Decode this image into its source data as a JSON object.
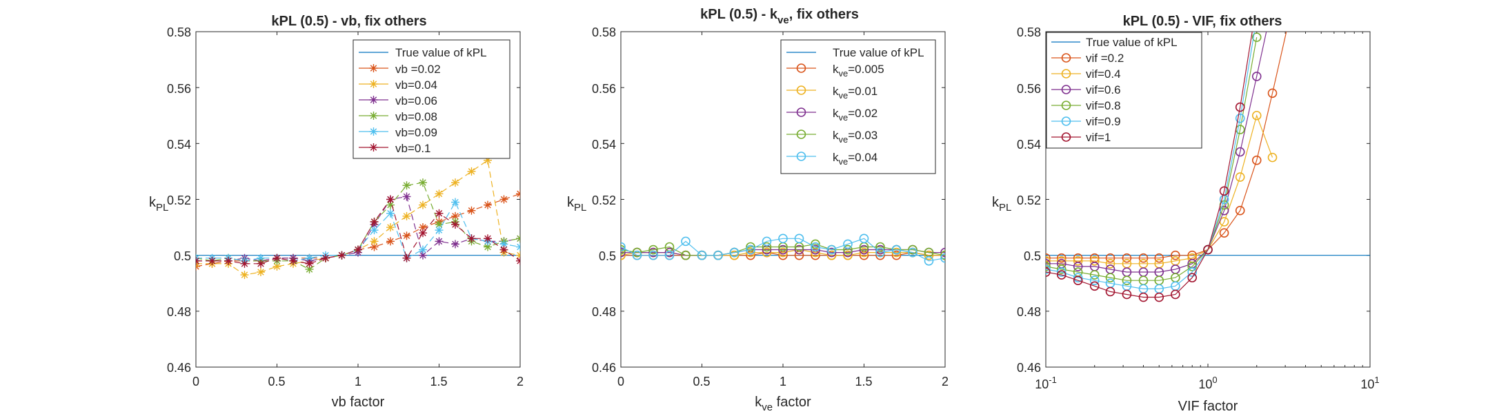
{
  "chart_data": [
    {
      "type": "line",
      "title": "kPL (0.5) - vb, fix others",
      "xlabel": "vb factor",
      "ylabel": "kPL",
      "ylabel_sub": "PL",
      "xscale": "linear",
      "xlim": [
        0,
        2
      ],
      "ylim": [
        0.46,
        0.58
      ],
      "xticks": [
        0,
        0.5,
        1,
        1.5,
        2
      ],
      "xtick_labels": [
        "0",
        "0.5",
        "1",
        "1.5",
        "2"
      ],
      "yticks": [
        0.46,
        0.48,
        0.5,
        0.52,
        0.54,
        0.56,
        0.58
      ],
      "ytick_labels": [
        "0.46",
        "0.48",
        "0.5",
        "0.52",
        "0.54",
        "0.56",
        "0.58"
      ],
      "marker": "star",
      "legend_position": "top-right",
      "reference": {
        "name": "True value of kPL",
        "value": 0.5,
        "color": "#0072bd"
      },
      "series": [
        {
          "name": "vb =0.02",
          "color": "#d95319",
          "x": [
            0,
            0.1,
            0.2,
            0.3,
            0.4,
            0.5,
            0.6,
            0.7,
            0.8,
            0.9,
            1,
            1.1,
            1.2,
            1.3,
            1.4,
            1.5,
            1.6,
            1.7,
            1.8,
            1.9,
            2
          ],
          "y": [
            0.496,
            0.497,
            0.498,
            0.498,
            0.498,
            0.499,
            0.499,
            0.499,
            0.499,
            0.5,
            0.502,
            0.503,
            0.505,
            0.507,
            0.51,
            0.512,
            0.514,
            0.516,
            0.518,
            0.52,
            0.522
          ]
        },
        {
          "name": "vb=0.04",
          "color": "#edb120",
          "x": [
            0,
            0.1,
            0.2,
            0.3,
            0.4,
            0.5,
            0.6,
            0.7,
            0.8,
            0.9,
            1,
            1.1,
            1.2,
            1.3,
            1.4,
            1.5,
            1.6,
            1.7,
            1.8,
            1.9,
            2
          ],
          "y": [
            0.497,
            0.497,
            0.497,
            0.493,
            0.494,
            0.496,
            0.497,
            0.498,
            0.499,
            0.5,
            0.502,
            0.505,
            0.51,
            0.514,
            0.518,
            0.522,
            0.526,
            0.53,
            0.534,
            0.501,
            0.5
          ]
        },
        {
          "name": "vb=0.06",
          "color": "#7e2f8e",
          "x": [
            0,
            0.1,
            0.2,
            0.3,
            0.4,
            0.5,
            0.6,
            0.7,
            0.8,
            0.9,
            1,
            1.1,
            1.2,
            1.3,
            1.4,
            1.5,
            1.6,
            1.7,
            1.8,
            1.9,
            2
          ],
          "y": [
            0.498,
            0.498,
            0.498,
            0.499,
            0.498,
            0.499,
            0.499,
            0.498,
            0.499,
            0.5,
            0.501,
            0.511,
            0.52,
            0.521,
            0.5,
            0.505,
            0.504,
            0.506,
            0.505,
            0.505,
            0.506
          ]
        },
        {
          "name": "vb=0.08",
          "color": "#77ac30",
          "x": [
            0,
            0.1,
            0.2,
            0.3,
            0.4,
            0.5,
            0.6,
            0.7,
            0.8,
            0.9,
            1,
            1.1,
            1.2,
            1.3,
            1.4,
            1.5,
            1.6,
            1.7,
            1.8,
            1.9,
            2
          ],
          "y": [
            0.499,
            0.498,
            0.499,
            0.498,
            0.498,
            0.498,
            0.498,
            0.495,
            0.499,
            0.5,
            0.502,
            0.512,
            0.518,
            0.525,
            0.526,
            0.511,
            0.512,
            0.505,
            0.503,
            0.505,
            0.506
          ]
        },
        {
          "name": "vb=0.09",
          "color": "#4dbeee",
          "x": [
            0,
            0.1,
            0.2,
            0.3,
            0.4,
            0.5,
            0.6,
            0.7,
            0.8,
            0.9,
            1,
            1.1,
            1.2,
            1.3,
            1.4,
            1.5,
            1.6,
            1.7,
            1.8,
            1.9,
            2
          ],
          "y": [
            0.499,
            0.499,
            0.499,
            0.498,
            0.499,
            0.499,
            0.498,
            0.499,
            0.5,
            0.5,
            0.502,
            0.509,
            0.515,
            0.499,
            0.502,
            0.509,
            0.519,
            0.506,
            0.505,
            0.504,
            0.503
          ]
        },
        {
          "name": "vb=0.1",
          "color": "#a2142f",
          "x": [
            0,
            0.1,
            0.2,
            0.3,
            0.4,
            0.5,
            0.6,
            0.7,
            0.8,
            0.9,
            1,
            1.1,
            1.2,
            1.3,
            1.4,
            1.5,
            1.6,
            1.7,
            1.8,
            1.9,
            2
          ],
          "y": [
            0.498,
            0.498,
            0.498,
            0.497,
            0.497,
            0.499,
            0.498,
            0.497,
            0.499,
            0.5,
            0.502,
            0.512,
            0.52,
            0.499,
            0.508,
            0.515,
            0.511,
            0.506,
            0.506,
            0.502,
            0.498
          ]
        }
      ]
    },
    {
      "type": "line",
      "title": "kPL (0.5) - kve, fix others",
      "xlabel": "kve factor",
      "ylabel": "kPL",
      "ylabel_sub": "PL",
      "xscale": "linear",
      "xlim": [
        0,
        2
      ],
      "ylim": [
        0.46,
        0.58
      ],
      "xticks": [
        0,
        0.5,
        1,
        1.5,
        2
      ],
      "xtick_labels": [
        "0",
        "0.5",
        "1",
        "1.5",
        "2"
      ],
      "yticks": [
        0.46,
        0.48,
        0.5,
        0.52,
        0.54,
        0.56,
        0.58
      ],
      "ytick_labels": [
        "0.46",
        "0.48",
        "0.5",
        "0.52",
        "0.54",
        "0.56",
        "0.58"
      ],
      "marker": "circle",
      "legend_position": "top-right",
      "reference": {
        "name": "True value of kPL",
        "value": 0.5,
        "color": "#0072bd"
      },
      "series": [
        {
          "name": "kve=0.005",
          "color": "#d95319",
          "x": [
            0,
            0.1,
            0.2,
            0.3,
            0.4,
            0.5,
            0.6,
            0.7,
            0.8,
            0.9,
            1,
            1.1,
            1.2,
            1.3,
            1.4,
            1.5,
            1.6,
            1.7,
            1.8,
            1.9,
            2
          ],
          "y": [
            0.5,
            0.5,
            0.5,
            0.5,
            0.5,
            0.5,
            0.5,
            0.5,
            0.5,
            0.501,
            0.5,
            0.5,
            0.5,
            0.5,
            0.5,
            0.5,
            0.5,
            0.5,
            0.501,
            0.5,
            0.5
          ]
        },
        {
          "name": "kve=0.01",
          "color": "#edb120",
          "x": [
            0,
            0.1,
            0.2,
            0.3,
            0.4,
            0.5,
            0.6,
            0.7,
            0.8,
            0.9,
            1,
            1.1,
            1.2,
            1.3,
            1.4,
            1.5,
            1.6,
            1.7,
            1.8,
            1.9,
            2
          ],
          "y": [
            0.5,
            0.501,
            0.501,
            0.501,
            0.5,
            0.5,
            0.5,
            0.5,
            0.501,
            0.501,
            0.501,
            0.502,
            0.501,
            0.5,
            0.5,
            0.501,
            0.501,
            0.501,
            0.501,
            0.5,
            0.5
          ]
        },
        {
          "name": "kve=0.02",
          "color": "#7e2f8e",
          "x": [
            0,
            0.1,
            0.2,
            0.3,
            0.4,
            0.5,
            0.6,
            0.7,
            0.8,
            0.9,
            1,
            1.1,
            1.2,
            1.3,
            1.4,
            1.5,
            1.6,
            1.7,
            1.8,
            1.9,
            2
          ],
          "y": [
            0.501,
            0.501,
            0.501,
            0.501,
            0.5,
            0.5,
            0.5,
            0.501,
            0.502,
            0.502,
            0.502,
            0.502,
            0.502,
            0.501,
            0.501,
            0.502,
            0.502,
            0.502,
            0.502,
            0.501,
            0.501
          ]
        },
        {
          "name": "kve=0.03",
          "color": "#77ac30",
          "x": [
            0,
            0.1,
            0.2,
            0.3,
            0.4,
            0.5,
            0.6,
            0.7,
            0.8,
            0.9,
            1,
            1.1,
            1.2,
            1.3,
            1.4,
            1.5,
            1.6,
            1.7,
            1.8,
            1.9,
            2
          ],
          "y": [
            0.502,
            0.501,
            0.502,
            0.503,
            0.5,
            0.5,
            0.5,
            0.501,
            0.503,
            0.503,
            0.503,
            0.503,
            0.504,
            0.502,
            0.502,
            0.503,
            0.503,
            0.502,
            0.502,
            0.501,
            0.5
          ]
        },
        {
          "name": "kve=0.04",
          "color": "#4dbeee",
          "x": [
            0,
            0.1,
            0.2,
            0.3,
            0.4,
            0.5,
            0.6,
            0.7,
            0.8,
            0.9,
            1,
            1.1,
            1.2,
            1.3,
            1.4,
            1.5,
            1.6,
            1.7,
            1.8,
            1.9,
            2
          ],
          "y": [
            0.503,
            0.5,
            0.5,
            0.5,
            0.505,
            0.5,
            0.5,
            0.501,
            0.502,
            0.505,
            0.506,
            0.506,
            0.503,
            0.502,
            0.504,
            0.506,
            0.501,
            0.502,
            0.501,
            0.498,
            0.499
          ]
        }
      ]
    },
    {
      "type": "line",
      "title": "kPL (0.5) - VIF, fix others",
      "xlabel": "VIF factor",
      "ylabel": "kPL",
      "ylabel_sub": "PL",
      "xscale": "log",
      "xlim": [
        0.1,
        10
      ],
      "ylim": [
        0.46,
        0.58
      ],
      "xticks": [
        0.1,
        1,
        10
      ],
      "xtick_labels": [
        "10",
        "10",
        "10"
      ],
      "xtick_exponents": [
        "-1",
        "0",
        "1"
      ],
      "yticks": [
        0.46,
        0.48,
        0.5,
        0.52,
        0.54,
        0.56,
        0.58
      ],
      "ytick_labels": [
        "0.46",
        "0.48",
        "0.5",
        "0.52",
        "0.54",
        "0.56",
        "0.58"
      ],
      "marker": "circle",
      "legend_position": "top-left",
      "reference": {
        "name": "True value of kPL",
        "value": 0.5,
        "color": "#0072bd"
      },
      "series": [
        {
          "name": "vif =0.2",
          "color": "#d95319",
          "x": [
            0.1,
            0.125,
            0.158,
            0.2,
            0.25,
            0.316,
            0.4,
            0.5,
            0.63,
            0.8,
            1,
            1.26,
            1.58,
            2,
            2.5,
            3.16
          ],
          "y": [
            0.499,
            0.499,
            0.499,
            0.499,
            0.499,
            0.499,
            0.499,
            0.499,
            0.5,
            0.5,
            0.502,
            0.508,
            0.516,
            0.534,
            0.558,
            0.584
          ]
        },
        {
          "name": "vif=0.4",
          "color": "#edb120",
          "x": [
            0.1,
            0.125,
            0.158,
            0.2,
            0.25,
            0.316,
            0.4,
            0.5,
            0.63,
            0.8,
            1,
            1.26,
            1.58,
            2,
            2.5
          ],
          "y": [
            0.498,
            0.498,
            0.498,
            0.498,
            0.497,
            0.497,
            0.497,
            0.497,
            0.498,
            0.499,
            0.502,
            0.512,
            0.528,
            0.55,
            0.535
          ]
        },
        {
          "name": "vif=0.6",
          "color": "#7e2f8e",
          "x": [
            0.1,
            0.125,
            0.158,
            0.2,
            0.25,
            0.316,
            0.4,
            0.5,
            0.63,
            0.8,
            1,
            1.26,
            1.58,
            2,
            2.5
          ],
          "y": [
            0.497,
            0.497,
            0.496,
            0.496,
            0.495,
            0.494,
            0.494,
            0.494,
            0.495,
            0.497,
            0.502,
            0.516,
            0.537,
            0.564,
            0.59
          ]
        },
        {
          "name": "vif=0.8",
          "color": "#77ac30",
          "x": [
            0.1,
            0.125,
            0.158,
            0.2,
            0.25,
            0.316,
            0.4,
            0.5,
            0.63,
            0.8,
            1,
            1.26,
            1.58,
            2
          ],
          "y": [
            0.496,
            0.495,
            0.494,
            0.493,
            0.492,
            0.491,
            0.491,
            0.491,
            0.492,
            0.496,
            0.502,
            0.518,
            0.545,
            0.578
          ]
        },
        {
          "name": "vif=0.9",
          "color": "#4dbeee",
          "x": [
            0.1,
            0.125,
            0.158,
            0.2,
            0.25,
            0.316,
            0.4,
            0.5,
            0.63,
            0.8,
            1,
            1.26,
            1.58,
            2
          ],
          "y": [
            0.495,
            0.494,
            0.492,
            0.491,
            0.49,
            0.489,
            0.488,
            0.488,
            0.489,
            0.494,
            0.502,
            0.52,
            0.549,
            0.585
          ]
        },
        {
          "name": "vif=1",
          "color": "#a2142f",
          "x": [
            0.1,
            0.125,
            0.158,
            0.2,
            0.25,
            0.316,
            0.4,
            0.5,
            0.63,
            0.8,
            1,
            1.26,
            1.58,
            2
          ],
          "y": [
            0.494,
            0.493,
            0.491,
            0.489,
            0.487,
            0.486,
            0.485,
            0.485,
            0.486,
            0.492,
            0.502,
            0.523,
            0.553,
            0.59
          ]
        }
      ]
    }
  ]
}
